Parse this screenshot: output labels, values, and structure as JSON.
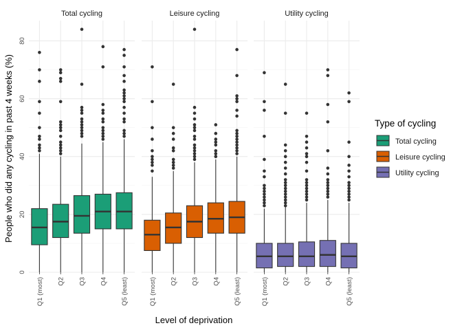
{
  "chart_data": {
    "type": "box",
    "xlabel": "Level of deprivation",
    "ylabel": "People who did any cycling in past 4 weeks (%)",
    "ylim": [
      0,
      87
    ],
    "yticks": [
      0,
      20,
      40,
      60,
      80
    ],
    "grid": true,
    "legend_position": "right",
    "legend_title": "Type of cycling",
    "categories": [
      "Q1 (most)",
      "Q2",
      "Q3",
      "Q4",
      "Q5 (least)"
    ],
    "panels": [
      {
        "title": "Total cycling",
        "color": "#1b9e77",
        "boxes": [
          {
            "lower": 0,
            "q1": 9.5,
            "median": 15.5,
            "q3": 22,
            "upper": 41,
            "outliers": [
              42,
              43,
              44,
              46,
              47,
              50,
              55,
              59,
              66,
              70,
              76
            ]
          },
          {
            "lower": 0,
            "q1": 12,
            "median": 17.5,
            "q3": 23.5,
            "upper": 40,
            "outliers": [
              41,
              42,
              43,
              44,
              45,
              47,
              49,
              50,
              51,
              52,
              59,
              66,
              67,
              69,
              70
            ]
          },
          {
            "lower": 0,
            "q1": 13.5,
            "median": 19.5,
            "q3": 26.5,
            "upper": 44.5,
            "outliers": [
              47,
              48,
              49,
              50,
              51,
              52,
              53,
              55,
              56,
              57,
              65,
              84
            ]
          },
          {
            "lower": 0,
            "q1": 15,
            "median": 21,
            "q3": 27,
            "upper": 45,
            "outliers": [
              46,
              47,
              48,
              49,
              50,
              52,
              53,
              55,
              56,
              58,
              71,
              78
            ]
          },
          {
            "lower": 0,
            "q1": 15,
            "median": 21,
            "q3": 27.5,
            "upper": 46,
            "outliers": [
              47,
              48,
              49,
              52,
              53,
              55,
              57,
              59,
              60,
              61,
              62,
              63,
              66,
              68,
              71,
              75,
              77
            ]
          }
        ]
      },
      {
        "title": "Leisure cycling",
        "color": "#d95f02",
        "boxes": [
          {
            "lower": 0,
            "q1": 7.5,
            "median": 13,
            "q3": 18,
            "upper": 33,
            "outliers": [
              35,
              37,
              38,
              39,
              40,
              42,
              46,
              50,
              59,
              71
            ]
          },
          {
            "lower": 0,
            "q1": 10,
            "median": 15.5,
            "q3": 20.5,
            "upper": 35,
            "outliers": [
              36,
              37,
              38,
              39,
              42,
              43,
              46,
              48,
              50,
              65
            ]
          },
          {
            "lower": 0,
            "q1": 12,
            "median": 17.5,
            "q3": 23,
            "upper": 38,
            "outliers": [
              39,
              40,
              41,
              42,
              43,
              44,
              46,
              47,
              49,
              50,
              51,
              53,
              55,
              57,
              84
            ]
          },
          {
            "lower": 0,
            "q1": 13.5,
            "median": 18.5,
            "q3": 24,
            "upper": 39,
            "outliers": [
              40,
              41,
              42,
              44,
              45,
              46,
              48,
              51
            ]
          },
          {
            "lower": 0,
            "q1": 13.5,
            "median": 19,
            "q3": 24.5,
            "upper": 40,
            "outliers": [
              41,
              42,
              43,
              44,
              45,
              46,
              47,
              48,
              49,
              54,
              56,
              59,
              60,
              61,
              68,
              77
            ]
          }
        ]
      },
      {
        "title": "Utility cycling",
        "color": "#7570b3",
        "boxes": [
          {
            "lower": 0,
            "q1": 1.5,
            "median": 5.5,
            "q3": 10,
            "upper": 22,
            "outliers": [
              23,
              24,
              25,
              26,
              27,
              28,
              29,
              30,
              33,
              35,
              39,
              47,
              56,
              59,
              69
            ]
          },
          {
            "lower": 0,
            "q1": 2,
            "median": 5.5,
            "q3": 10,
            "upper": 22.5,
            "outliers": [
              23,
              24,
              25,
              26,
              27,
              28,
              29,
              30,
              31,
              32,
              34,
              36,
              38,
              40,
              42,
              44,
              55,
              65
            ]
          },
          {
            "lower": 0,
            "q1": 2,
            "median": 5.5,
            "q3": 10.5,
            "upper": 24,
            "outliers": [
              25,
              26,
              27,
              28,
              29,
              30,
              31,
              32,
              35,
              38,
              40,
              41,
              43,
              45,
              47,
              55
            ]
          },
          {
            "lower": 0,
            "q1": 2,
            "median": 6,
            "q3": 11,
            "upper": 25,
            "outliers": [
              26,
              27,
              28,
              29,
              30,
              31,
              32,
              34,
              36,
              42,
              52,
              58,
              68,
              70
            ]
          },
          {
            "lower": 0,
            "q1": 1.5,
            "median": 5.5,
            "q3": 10,
            "upper": 24,
            "outliers": [
              25,
              26,
              27,
              28,
              29,
              30,
              31,
              33,
              35,
              37,
              40,
              45,
              59,
              62
            ]
          }
        ]
      }
    ],
    "legend": [
      "Total cycling",
      "Leisure cycling",
      "Utility cycling"
    ]
  }
}
